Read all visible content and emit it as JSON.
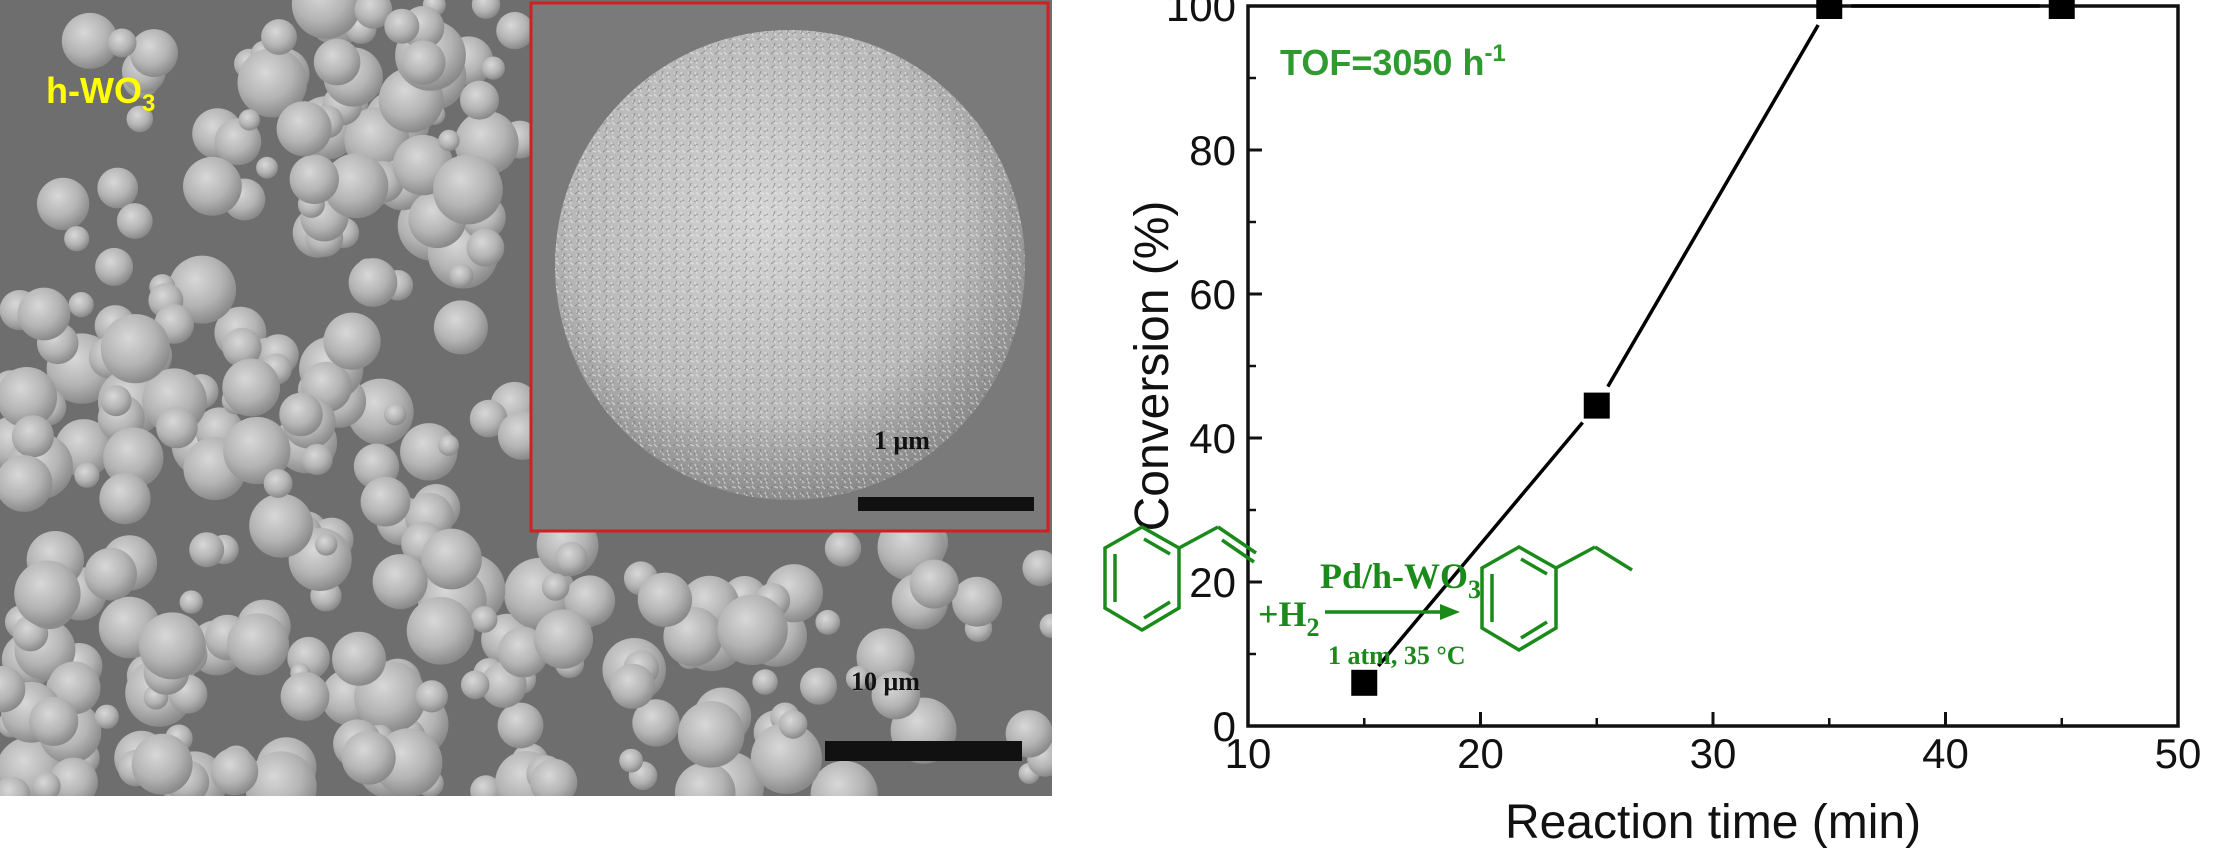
{
  "sem": {
    "sample_label": "h-WO",
    "sample_label_sub": "3",
    "main_scale_label": "10 μm",
    "inset_scale_label": "1 μm",
    "inset_border_color": "#d02020",
    "label_color": "#ffff00"
  },
  "chart_data": {
    "type": "line",
    "xlabel": "Reaction time (min)",
    "ylabel": "Conversion (%)",
    "xlim": [
      10,
      50
    ],
    "ylim": [
      0,
      100
    ],
    "xticks": [
      10,
      20,
      30,
      40,
      50
    ],
    "yticks": [
      0,
      20,
      40,
      60,
      80,
      100
    ],
    "x": [
      15,
      25,
      35,
      45
    ],
    "y": [
      6,
      44.5,
      100,
      100
    ],
    "marker": "square",
    "line_color": "#000000",
    "annotation": {
      "tof_prefix": "TOF=3050 h",
      "tof_sup": "-1",
      "catalyst": "Pd/h-WO",
      "catalyst_sub": "3",
      "reagent": "+H",
      "reagent_sub": "2",
      "conditions": "1 atm, 35 °C",
      "color": "#1a8a1a"
    }
  }
}
